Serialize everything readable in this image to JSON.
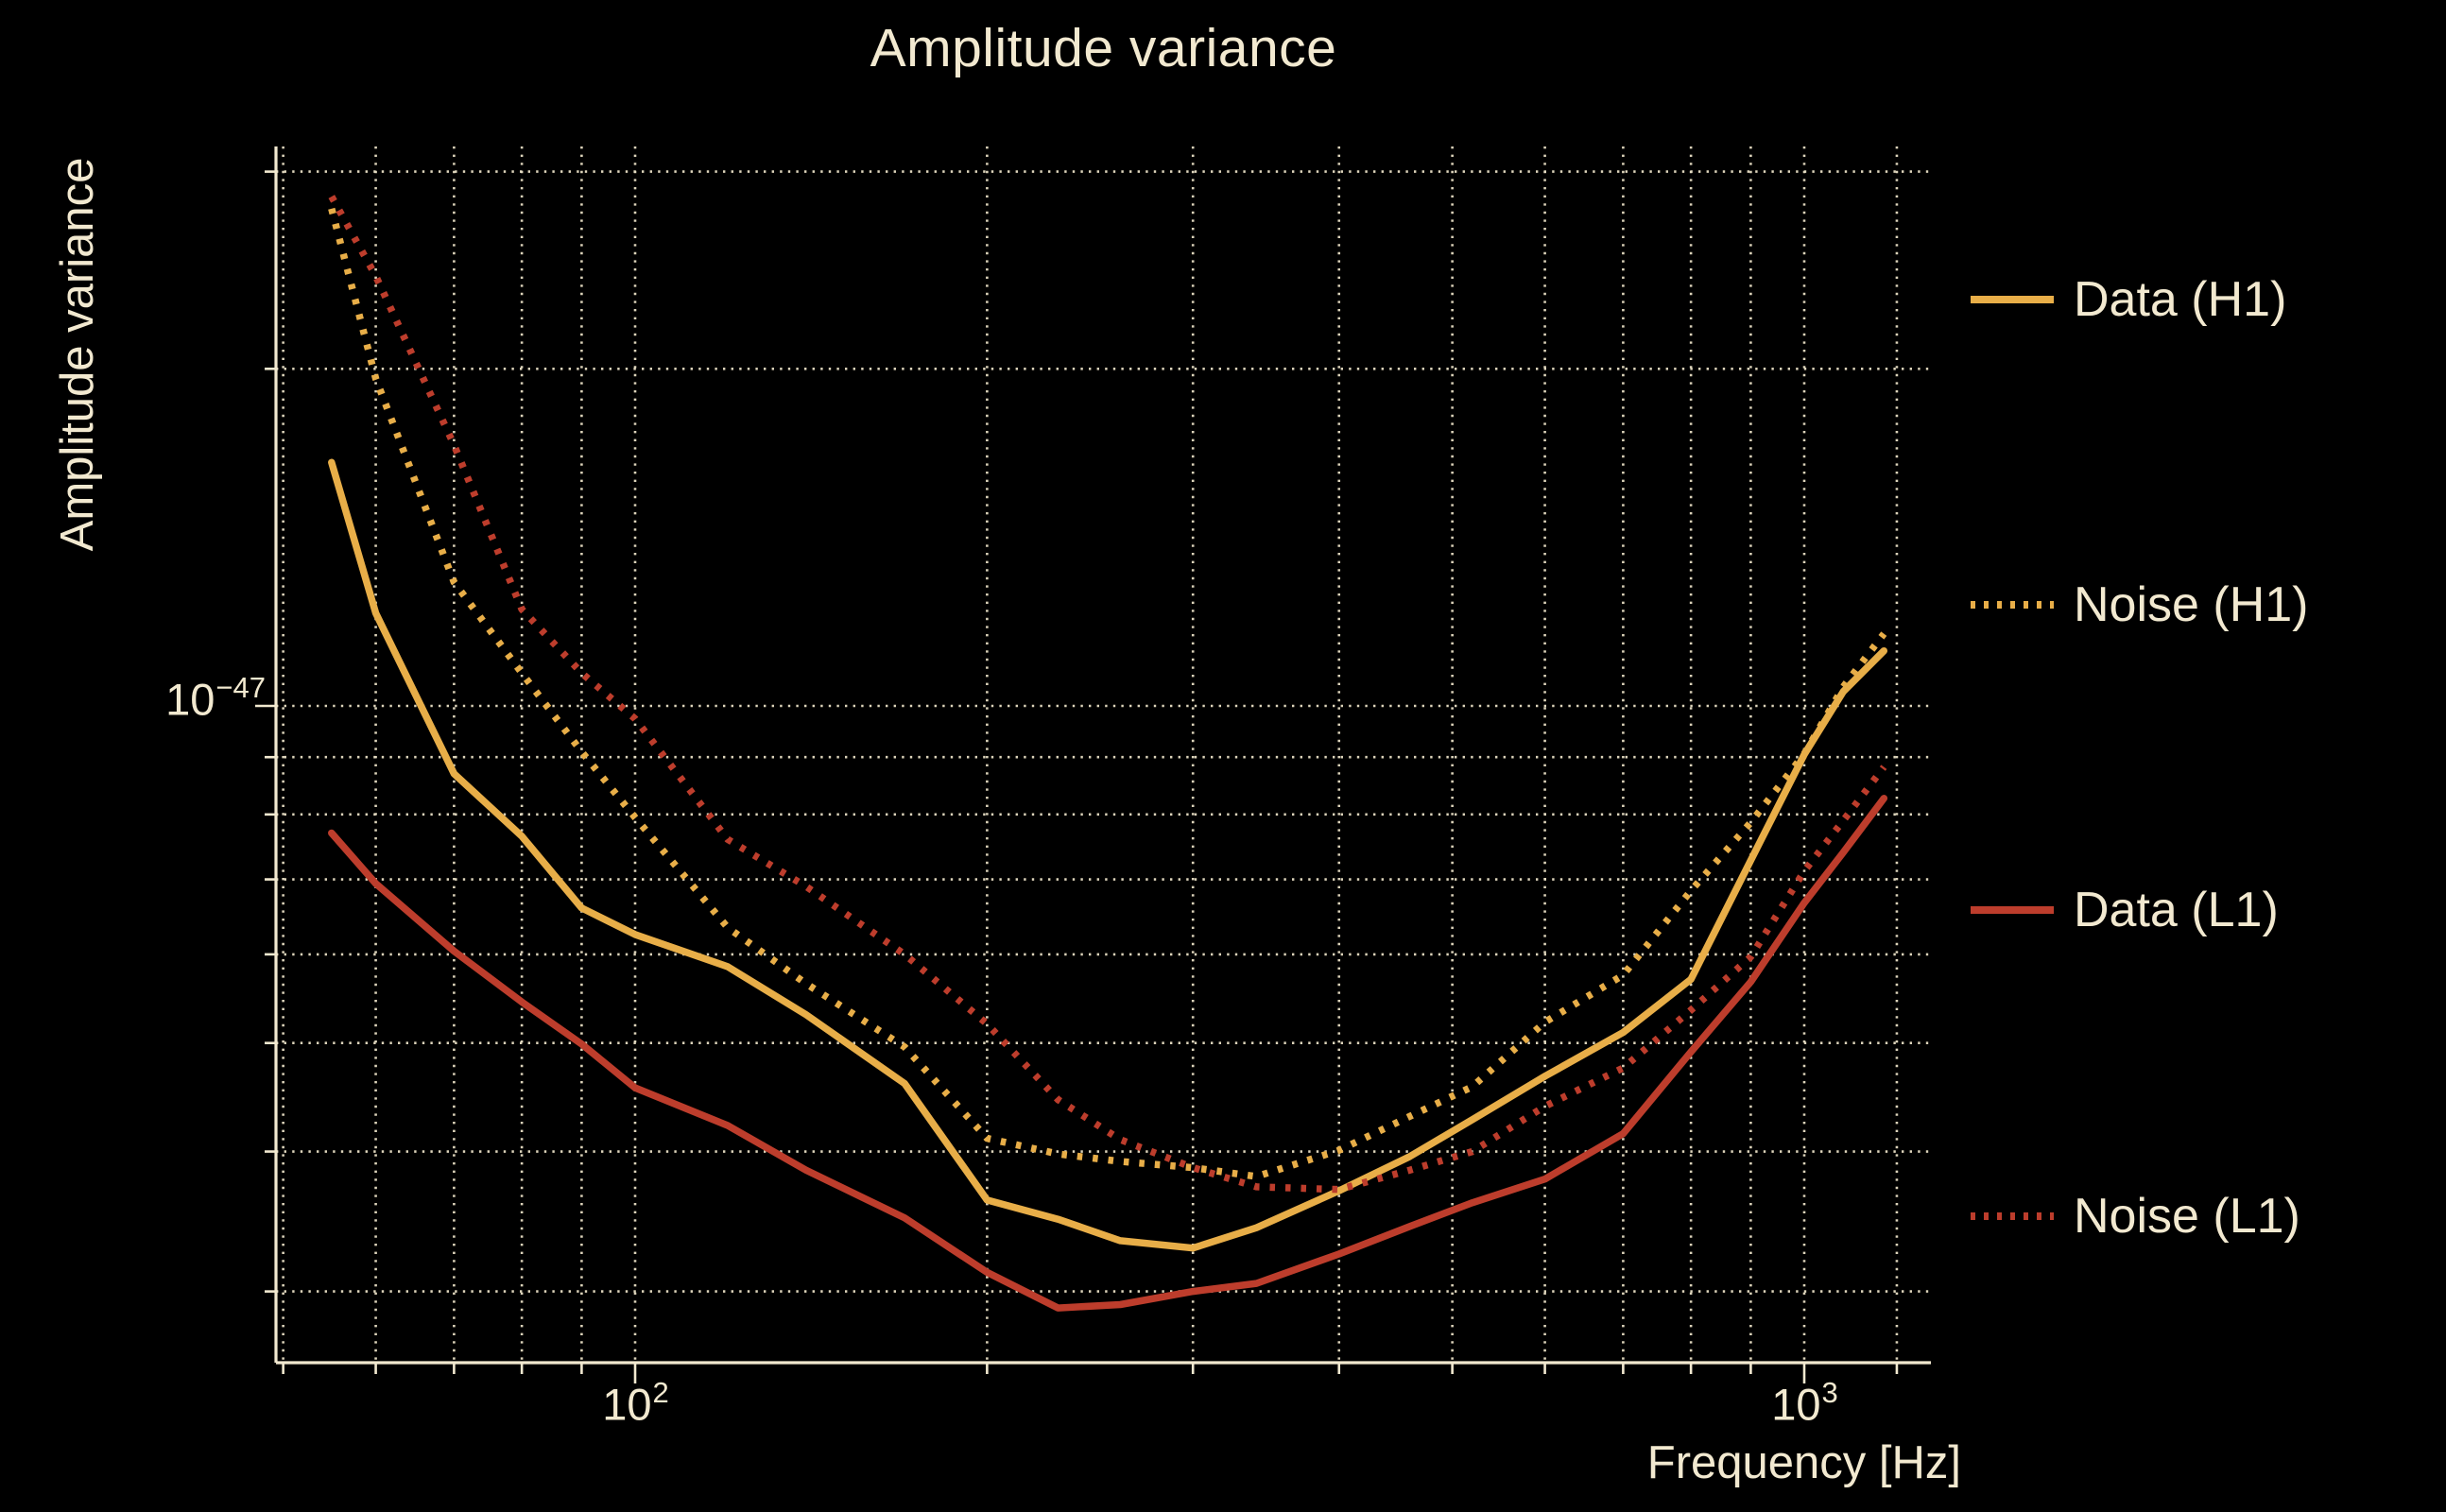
{
  "page": {
    "background_color": "#000000",
    "text_color": "#F2E9D0"
  },
  "chart_data": {
    "type": "line",
    "title": "Amplitude variance",
    "xlabel": "Frequency [Hz]",
    "ylabel": "Amplitude variance",
    "x_scale": "log",
    "y_scale": "log",
    "x_range_hz": [
      49.3,
      1283
    ],
    "y_range": [
      2.6e-48,
      3.16e-47
    ],
    "grid": "both-dotted",
    "legend_position": "right-outside",
    "x_hz": [
      55,
      60,
      70,
      80,
      90,
      100,
      120,
      140,
      170,
      200,
      230,
      260,
      300,
      340,
      400,
      460,
      520,
      600,
      700,
      800,
      900,
      1000,
      1080,
      1170
    ],
    "y_unit_exponent": -48,
    "series": [
      {
        "name": "Data (H1)",
        "color": "#E8AE48",
        "style": "solid",
        "values_1e48": [
          16.5,
          12.1,
          8.7,
          7.65,
          6.6,
          6.25,
          5.85,
          5.3,
          4.6,
          3.62,
          3.48,
          3.33,
          3.28,
          3.42,
          3.69,
          3.96,
          4.27,
          4.67,
          5.11,
          5.7,
          7.28,
          9.05,
          10.3,
          11.2
        ]
      },
      {
        "name": "Noise (H1)",
        "color": "#E8AE48",
        "style": "dotted",
        "values_1e48": [
          27.8,
          19.6,
          12.9,
          10.7,
          9.1,
          7.95,
          6.34,
          5.65,
          4.96,
          4.11,
          3.98,
          3.92,
          3.87,
          3.8,
          4.01,
          4.3,
          4.57,
          5.22,
          5.75,
          6.84,
          7.87,
          9.06,
          10.4,
          11.6
        ]
      },
      {
        "name": "Data (L1)",
        "color": "#BD3D2C",
        "style": "solid",
        "values_1e48": [
          7.7,
          6.94,
          6.04,
          5.44,
          4.99,
          4.56,
          4.22,
          3.85,
          3.49,
          3.12,
          2.9,
          2.92,
          3.0,
          3.05,
          3.24,
          3.43,
          3.6,
          3.78,
          4.15,
          4.91,
          5.67,
          6.67,
          7.4,
          8.27
        ]
      },
      {
        "name": "Noise (L1)",
        "color": "#BD3D2C",
        "style": "dotted",
        "values_1e48": [
          28.5,
          24.2,
          17.1,
          12.2,
          10.7,
          9.74,
          7.6,
          6.9,
          6.0,
          5.2,
          4.45,
          4.1,
          3.87,
          3.72,
          3.7,
          3.85,
          4.0,
          4.39,
          4.75,
          5.35,
          5.97,
          7.12,
          7.9,
          8.82
        ]
      }
    ],
    "x_ticks": [
      {
        "value_hz": 100,
        "base": "10",
        "exp": "2"
      },
      {
        "value_hz": 1000,
        "base": "10",
        "exp": "3"
      }
    ],
    "y_ticks": [
      {
        "value_1e48": 10,
        "base": "10",
        "exp": "−47"
      }
    ],
    "x_minor_gridlines_hz": [
      50,
      60,
      70,
      80,
      90,
      200,
      300,
      400,
      500,
      600,
      700,
      800,
      900,
      1200
    ],
    "y_minor_gridlines_1e48": [
      3,
      4,
      5,
      6,
      7,
      8,
      9,
      20,
      30
    ],
    "grid_color": "#E9E0C6",
    "axis_color": "#F2E9D0"
  }
}
